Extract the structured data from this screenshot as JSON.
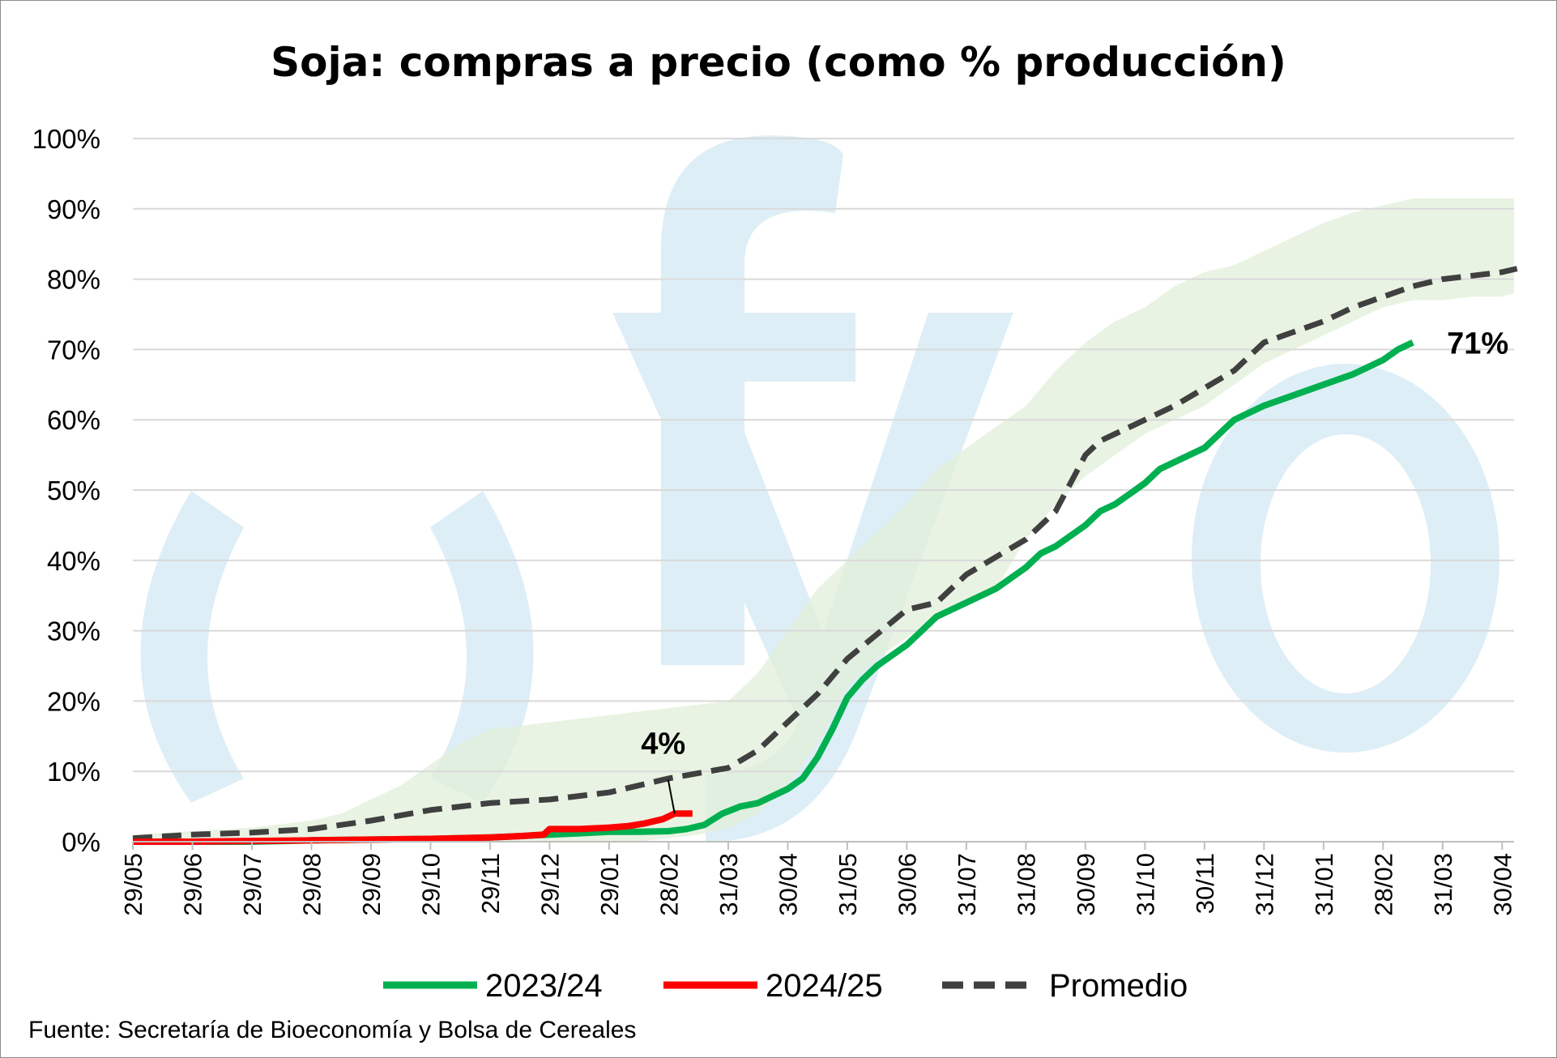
{
  "chart_data": {
    "type": "line",
    "title": "Soja: compras a precio (como % producción)",
    "source": "Fuente: Secretaría de Bioeconomía y Bolsa de Cereales",
    "watermark": "fyo",
    "ylim": [
      0,
      100
    ],
    "y_ticks": [
      "0%",
      "10%",
      "20%",
      "30%",
      "40%",
      "50%",
      "60%",
      "70%",
      "80%",
      "90%",
      "100%"
    ],
    "x_ticks": [
      "29/05",
      "29/06",
      "29/07",
      "29/08",
      "29/09",
      "29/10",
      "29/11",
      "29/12",
      "29/01",
      "28/02",
      "31/03",
      "30/04",
      "31/05",
      "30/06",
      "31/07",
      "31/08",
      "30/09",
      "31/10",
      "30/11",
      "31/12",
      "31/01",
      "28/02",
      "31/03",
      "30/04"
    ],
    "x_unit": "months since 29/05",
    "grid": true,
    "legend_position": "bottom",
    "colors": {
      "s2324": "#00b050",
      "s2425": "#ff0000",
      "promedio": "#404040",
      "band": "#e2efd9",
      "watermark": "#deeef6"
    },
    "band": {
      "x": [
        0,
        1,
        2,
        3,
        3.5,
        4,
        4.5,
        5,
        5.5,
        6,
        6.5,
        7,
        7.5,
        8,
        8.5,
        9,
        9.5,
        10,
        10.5,
        11,
        11.5,
        12,
        12.5,
        13,
        13.5,
        14,
        14.5,
        15,
        15.5,
        16,
        16.5,
        17,
        17.5,
        18,
        18.5,
        19,
        19.5,
        20,
        20.5,
        21,
        21.5,
        22,
        22.5,
        23,
        23.2
      ],
      "low": [
        0,
        0,
        0,
        0,
        0,
        0,
        0,
        0,
        0,
        0,
        0,
        0,
        0,
        0,
        0,
        0.5,
        1,
        2,
        4,
        8,
        14,
        22,
        26,
        29,
        32,
        34,
        36,
        43,
        48,
        52,
        55,
        58,
        60,
        62,
        65,
        68,
        70,
        72,
        74,
        76,
        77,
        77,
        77.5,
        77.5,
        78
      ],
      "high": [
        1,
        1.5,
        2,
        3,
        4,
        6,
        8,
        11,
        14,
        16,
        16.5,
        17,
        17.5,
        18,
        18.5,
        19,
        19.5,
        20,
        24,
        30,
        36,
        40,
        44,
        48,
        53,
        56,
        59,
        62,
        67,
        71,
        74,
        76,
        79,
        81,
        82,
        84,
        86,
        88,
        89.5,
        90.5,
        91.5,
        91.5,
        91.5,
        91.5,
        91.5
      ]
    },
    "series": [
      {
        "name": "2023/24",
        "x": [
          0,
          1,
          2,
          3,
          4,
          5,
          6,
          6.5,
          7,
          7.5,
          8,
          8.5,
          9,
          9.3,
          9.6,
          9.9,
          10.2,
          10.5,
          11,
          11.25,
          11.5,
          11.75,
          12,
          12.25,
          12.5,
          13,
          13.25,
          13.5,
          14,
          14.5,
          15,
          15.25,
          15.5,
          16,
          16.25,
          16.5,
          17,
          17.25,
          17.5,
          18,
          18.25,
          18.5,
          19,
          19.5,
          20,
          20.5,
          21,
          21.25,
          21.5
        ],
        "y": [
          0,
          0,
          0,
          0.2,
          0.3,
          0.4,
          0.6,
          0.8,
          1,
          1.2,
          1.4,
          1.4,
          1.5,
          1.8,
          2.4,
          4,
          5,
          5.5,
          7.5,
          9,
          12,
          16,
          20.5,
          23,
          25,
          28,
          30,
          32,
          34,
          36,
          39,
          41,
          42,
          45,
          47,
          48,
          51,
          53,
          54,
          56,
          58,
          60,
          62,
          63.5,
          65,
          66.5,
          68.5,
          70,
          71
        ]
      },
      {
        "name": "2024/25",
        "x": [
          0,
          1,
          2,
          3,
          4,
          5,
          6,
          6.5,
          6.9,
          7,
          7.5,
          8,
          8.3,
          8.6,
          8.9,
          9.1,
          9.4
        ],
        "y": [
          0,
          0,
          0.1,
          0.2,
          0.3,
          0.4,
          0.6,
          0.8,
          1,
          1.8,
          1.8,
          2,
          2.2,
          2.6,
          3.2,
          4,
          4
        ]
      },
      {
        "name": "Promedio",
        "x": [
          0,
          1,
          2,
          3,
          4,
          5,
          5.5,
          6,
          7,
          8,
          9,
          10,
          10.5,
          11,
          11.5,
          12,
          12.5,
          13,
          13.5,
          14,
          14.5,
          15,
          15.5,
          16,
          16.25,
          16.5,
          17,
          17.5,
          18,
          18.5,
          19,
          19.5,
          20,
          20.5,
          21,
          21.5,
          22,
          22.5,
          23,
          23.25
        ],
        "y": [
          0.5,
          1,
          1.3,
          1.8,
          3,
          4.5,
          5,
          5.5,
          6,
          7,
          9,
          10.5,
          13,
          17,
          21,
          26,
          29.5,
          33,
          34,
          38,
          40.5,
          43,
          47,
          55,
          57,
          58,
          60,
          62,
          64.5,
          67,
          71,
          72.5,
          74,
          76,
          77.5,
          79,
          80,
          80.5,
          81,
          81.5
        ]
      }
    ],
    "annotations": [
      {
        "text": "4%",
        "x": 9.1,
        "y": 4
      },
      {
        "text": "71%",
        "x": 21.5,
        "y": 71
      }
    ]
  }
}
